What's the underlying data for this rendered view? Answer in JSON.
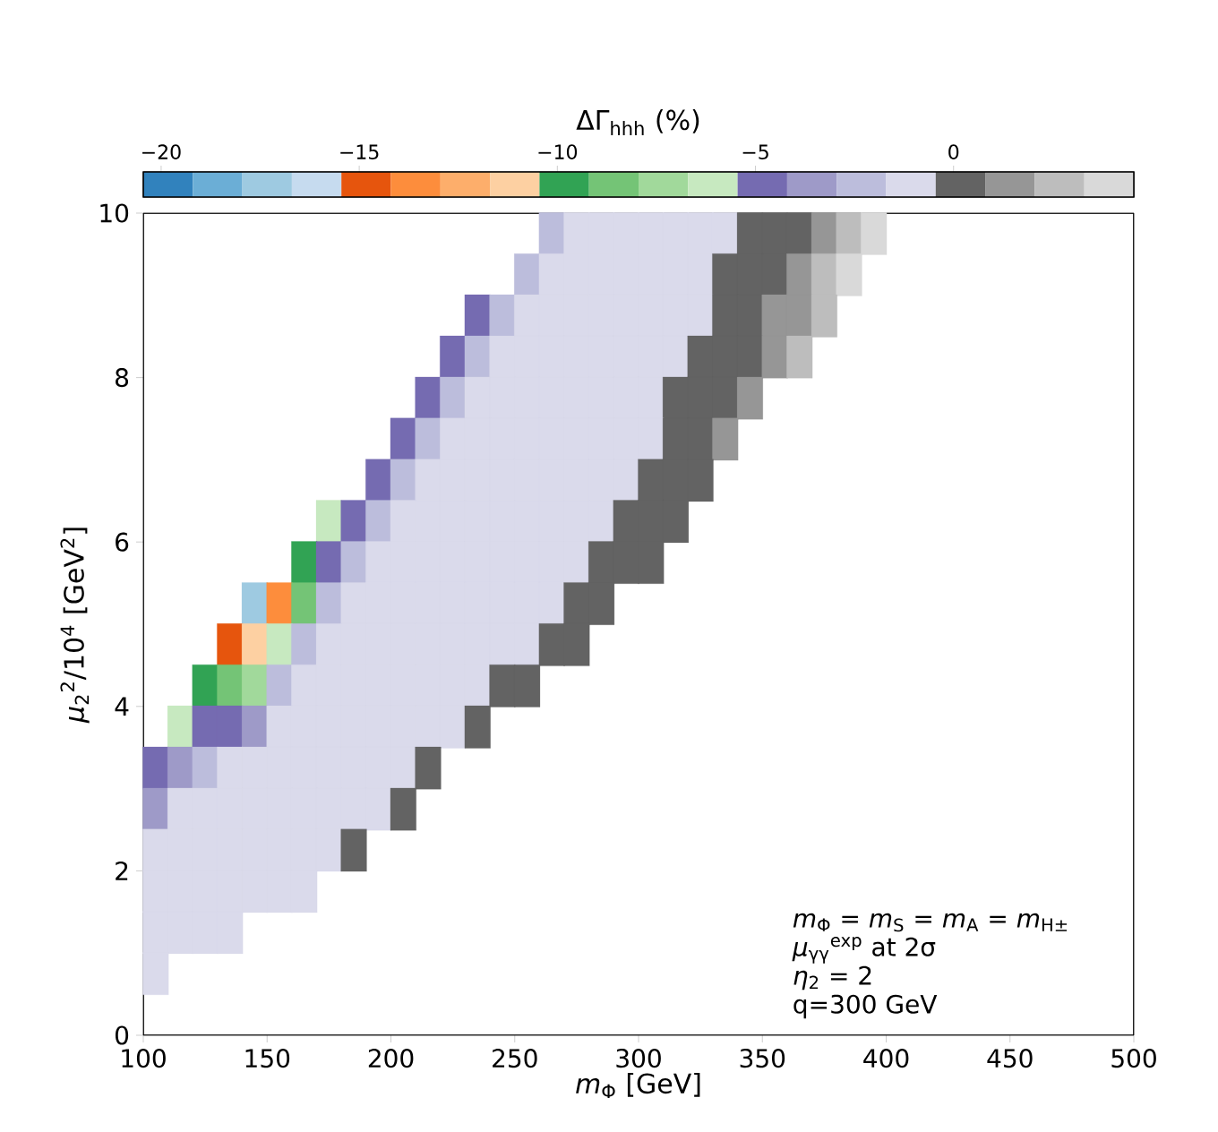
{
  "chart_data": {
    "type": "scatter",
    "marker": "square",
    "xlabel": "*m*$_{Φ}$ [GeV]",
    "ylabel": "*μ*$_{2}$$^{2}$/10$^{4}$ [GeV$^{2}$]",
    "clabel": "ΔΓ$_{hhh}$ (%)",
    "annotations": [
      "*m*$_{Φ}$ = *m*$_{S}$ = *m*$_{A}$ = *m*$_{H±}$",
      "*μ*$_{γγ}$$^{exp}$ at 2σ",
      "*η*$_{2}$ = 2",
      "q=300 GeV"
    ],
    "xlim": [
      100,
      500
    ],
    "ylim": [
      0,
      10
    ],
    "xticks": [
      100,
      150,
      200,
      250,
      300,
      350,
      400,
      450,
      500
    ],
    "yticks": [
      0,
      2,
      4,
      6,
      8,
      10
    ],
    "clim": [
      -20.45,
      4.55
    ],
    "cticks": [
      {
        "value": -20,
        "label": "−20"
      },
      {
        "value": -15,
        "label": "−15"
      },
      {
        "value": -10,
        "label": "−10"
      },
      {
        "value": -5,
        "label": "−5"
      },
      0
    ],
    "series": [
      {
        "x": [
          265,
          275,
          285,
          295,
          305,
          315,
          325,
          335,
          345,
          355,
          365,
          375,
          385,
          395
        ],
        "values": [
          9.75,
          9.75,
          9.75,
          9.75,
          9.75,
          9.75,
          9.75,
          9.75,
          9.75,
          9.75,
          9.75,
          9.75,
          9.75,
          9.75
        ],
        "colors": [
          "#bcbddc",
          "#dadaeb",
          "#dadaeb",
          "#dadaeb",
          "#dadaeb",
          "#dadaeb",
          "#dadaeb",
          "#dadaeb",
          "#636363",
          "#636363",
          "#636363",
          "#969696",
          "#bdbdbd",
          "#d9d9d9"
        ]
      },
      {
        "x": [
          255,
          265,
          275,
          285,
          295,
          305,
          315,
          325,
          335,
          345,
          355,
          365,
          375,
          385
        ],
        "values": [
          9.25,
          9.25,
          9.25,
          9.25,
          9.25,
          9.25,
          9.25,
          9.25,
          9.25,
          9.25,
          9.25,
          9.25,
          9.25,
          9.25
        ],
        "colors": [
          "#bcbddc",
          "#dadaeb",
          "#dadaeb",
          "#dadaeb",
          "#dadaeb",
          "#dadaeb",
          "#dadaeb",
          "#dadaeb",
          "#636363",
          "#636363",
          "#636363",
          "#969696",
          "#bdbdbd",
          "#d9d9d9"
        ]
      },
      {
        "x": [
          235,
          245,
          255,
          265,
          275,
          285,
          295,
          305,
          315,
          325,
          335,
          345,
          355,
          365,
          375
        ],
        "values": [
          8.75,
          8.75,
          8.75,
          8.75,
          8.75,
          8.75,
          8.75,
          8.75,
          8.75,
          8.75,
          8.75,
          8.75,
          8.75,
          8.75,
          8.75
        ],
        "colors": [
          "#756bb1",
          "#bcbddc",
          "#dadaeb",
          "#dadaeb",
          "#dadaeb",
          "#dadaeb",
          "#dadaeb",
          "#dadaeb",
          "#dadaeb",
          "#dadaeb",
          "#636363",
          "#636363",
          "#969696",
          "#969696",
          "#bdbdbd"
        ]
      },
      {
        "x": [
          225,
          235,
          245,
          255,
          265,
          275,
          285,
          295,
          305,
          315,
          325,
          335,
          345,
          355,
          365
        ],
        "values": [
          8.25,
          8.25,
          8.25,
          8.25,
          8.25,
          8.25,
          8.25,
          8.25,
          8.25,
          8.25,
          8.25,
          8.25,
          8.25,
          8.25,
          8.25
        ],
        "colors": [
          "#756bb1",
          "#bcbddc",
          "#dadaeb",
          "#dadaeb",
          "#dadaeb",
          "#dadaeb",
          "#dadaeb",
          "#dadaeb",
          "#dadaeb",
          "#dadaeb",
          "#636363",
          "#636363",
          "#636363",
          "#969696",
          "#bdbdbd"
        ]
      },
      {
        "x": [
          215,
          225,
          235,
          245,
          255,
          265,
          275,
          285,
          295,
          305,
          315,
          325,
          335,
          345
        ],
        "values": [
          7.75,
          7.75,
          7.75,
          7.75,
          7.75,
          7.75,
          7.75,
          7.75,
          7.75,
          7.75,
          7.75,
          7.75,
          7.75,
          7.75
        ],
        "colors": [
          "#756bb1",
          "#bcbddc",
          "#dadaeb",
          "#dadaeb",
          "#dadaeb",
          "#dadaeb",
          "#dadaeb",
          "#dadaeb",
          "#dadaeb",
          "#dadaeb",
          "#636363",
          "#636363",
          "#636363",
          "#969696"
        ]
      },
      {
        "x": [
          205,
          215,
          225,
          235,
          245,
          255,
          265,
          275,
          285,
          295,
          305,
          315,
          325,
          335
        ],
        "values": [
          7.25,
          7.25,
          7.25,
          7.25,
          7.25,
          7.25,
          7.25,
          7.25,
          7.25,
          7.25,
          7.25,
          7.25,
          7.25,
          7.25
        ],
        "colors": [
          "#756bb1",
          "#bcbddc",
          "#dadaeb",
          "#dadaeb",
          "#dadaeb",
          "#dadaeb",
          "#dadaeb",
          "#dadaeb",
          "#dadaeb",
          "#dadaeb",
          "#dadaeb",
          "#636363",
          "#636363",
          "#969696"
        ]
      },
      {
        "x": [
          195,
          205,
          215,
          225,
          235,
          245,
          255,
          265,
          275,
          285,
          295,
          305,
          315,
          325
        ],
        "values": [
          6.75,
          6.75,
          6.75,
          6.75,
          6.75,
          6.75,
          6.75,
          6.75,
          6.75,
          6.75,
          6.75,
          6.75,
          6.75,
          6.75
        ],
        "colors": [
          "#756bb1",
          "#bcbddc",
          "#dadaeb",
          "#dadaeb",
          "#dadaeb",
          "#dadaeb",
          "#dadaeb",
          "#dadaeb",
          "#dadaeb",
          "#dadaeb",
          "#dadaeb",
          "#636363",
          "#636363",
          "#636363"
        ]
      },
      {
        "x": [
          175,
          185,
          195,
          205,
          215,
          225,
          235,
          245,
          255,
          265,
          275,
          285,
          295,
          305,
          315
        ],
        "values": [
          6.25,
          6.25,
          6.25,
          6.25,
          6.25,
          6.25,
          6.25,
          6.25,
          6.25,
          6.25,
          6.25,
          6.25,
          6.25,
          6.25,
          6.25
        ],
        "colors": [
          "#c7e9c0",
          "#756bb1",
          "#bcbddc",
          "#dadaeb",
          "#dadaeb",
          "#dadaeb",
          "#dadaeb",
          "#dadaeb",
          "#dadaeb",
          "#dadaeb",
          "#dadaeb",
          "#dadaeb",
          "#636363",
          "#636363",
          "#636363"
        ]
      },
      {
        "x": [
          165,
          175,
          185,
          195,
          205,
          215,
          225,
          235,
          245,
          255,
          265,
          275,
          285,
          295,
          305
        ],
        "values": [
          5.75,
          5.75,
          5.75,
          5.75,
          5.75,
          5.75,
          5.75,
          5.75,
          5.75,
          5.75,
          5.75,
          5.75,
          5.75,
          5.75,
          5.75
        ],
        "colors": [
          "#31a354",
          "#756bb1",
          "#bcbddc",
          "#dadaeb",
          "#dadaeb",
          "#dadaeb",
          "#dadaeb",
          "#dadaeb",
          "#dadaeb",
          "#dadaeb",
          "#dadaeb",
          "#dadaeb",
          "#636363",
          "#636363",
          "#636363"
        ]
      },
      {
        "x": [
          145,
          155,
          165,
          175,
          185,
          195,
          205,
          215,
          225,
          235,
          245,
          255,
          265,
          275,
          285
        ],
        "values": [
          5.25,
          5.25,
          5.25,
          5.25,
          5.25,
          5.25,
          5.25,
          5.25,
          5.25,
          5.25,
          5.25,
          5.25,
          5.25,
          5.25,
          5.25
        ],
        "colors": [
          "#9ecae1",
          "#fd8d3c",
          "#74c476",
          "#bcbddc",
          "#dadaeb",
          "#dadaeb",
          "#dadaeb",
          "#dadaeb",
          "#dadaeb",
          "#dadaeb",
          "#dadaeb",
          "#dadaeb",
          "#dadaeb",
          "#636363",
          "#636363"
        ]
      },
      {
        "x": [
          135,
          145,
          155,
          165,
          175,
          185,
          195,
          205,
          215,
          225,
          235,
          245,
          255,
          265,
          275
        ],
        "values": [
          4.75,
          4.75,
          4.75,
          4.75,
          4.75,
          4.75,
          4.75,
          4.75,
          4.75,
          4.75,
          4.75,
          4.75,
          4.75,
          4.75,
          4.75
        ],
        "colors": [
          "#e6550d",
          "#fdd0a2",
          "#c7e9c0",
          "#bcbddc",
          "#dadaeb",
          "#dadaeb",
          "#dadaeb",
          "#dadaeb",
          "#dadaeb",
          "#dadaeb",
          "#dadaeb",
          "#dadaeb",
          "#dadaeb",
          "#636363",
          "#636363"
        ]
      },
      {
        "x": [
          125,
          135,
          145,
          155,
          165,
          175,
          185,
          195,
          205,
          215,
          225,
          235,
          245,
          255
        ],
        "values": [
          4.25,
          4.25,
          4.25,
          4.25,
          4.25,
          4.25,
          4.25,
          4.25,
          4.25,
          4.25,
          4.25,
          4.25,
          4.25,
          4.25
        ],
        "colors": [
          "#31a354",
          "#74c476",
          "#a1d99b",
          "#bcbddc",
          "#dadaeb",
          "#dadaeb",
          "#dadaeb",
          "#dadaeb",
          "#dadaeb",
          "#dadaeb",
          "#dadaeb",
          "#dadaeb",
          "#636363",
          "#636363"
        ]
      },
      {
        "x": [
          115,
          125,
          135,
          145,
          155,
          165,
          175,
          185,
          195,
          205,
          215,
          225,
          235
        ],
        "values": [
          3.75,
          3.75,
          3.75,
          3.75,
          3.75,
          3.75,
          3.75,
          3.75,
          3.75,
          3.75,
          3.75,
          3.75,
          3.75
        ],
        "colors": [
          "#c7e9c0",
          "#756bb1",
          "#756bb1",
          "#9e9ac8",
          "#dadaeb",
          "#dadaeb",
          "#dadaeb",
          "#dadaeb",
          "#dadaeb",
          "#dadaeb",
          "#dadaeb",
          "#dadaeb",
          "#636363"
        ]
      },
      {
        "x": [
          105,
          115,
          125,
          135,
          145,
          155,
          165,
          175,
          185,
          195,
          205,
          215
        ],
        "values": [
          3.25,
          3.25,
          3.25,
          3.25,
          3.25,
          3.25,
          3.25,
          3.25,
          3.25,
          3.25,
          3.25,
          3.25
        ],
        "colors": [
          "#756bb1",
          "#9e9ac8",
          "#bcbddc",
          "#dadaeb",
          "#dadaeb",
          "#dadaeb",
          "#dadaeb",
          "#dadaeb",
          "#dadaeb",
          "#dadaeb",
          "#dadaeb",
          "#636363"
        ]
      },
      {
        "x": [
          105,
          115,
          125,
          135,
          145,
          155,
          165,
          175,
          185,
          195,
          205
        ],
        "values": [
          2.75,
          2.75,
          2.75,
          2.75,
          2.75,
          2.75,
          2.75,
          2.75,
          2.75,
          2.75,
          2.75
        ],
        "colors": [
          "#9e9ac8",
          "#dadaeb",
          "#dadaeb",
          "#dadaeb",
          "#dadaeb",
          "#dadaeb",
          "#dadaeb",
          "#dadaeb",
          "#dadaeb",
          "#dadaeb",
          "#636363"
        ]
      },
      {
        "x": [
          105,
          115,
          125,
          135,
          145,
          155,
          165,
          175,
          185
        ],
        "values": [
          2.25,
          2.25,
          2.25,
          2.25,
          2.25,
          2.25,
          2.25,
          2.25,
          2.25
        ],
        "colors": [
          "#dadaeb",
          "#dadaeb",
          "#dadaeb",
          "#dadaeb",
          "#dadaeb",
          "#dadaeb",
          "#dadaeb",
          "#dadaeb",
          "#636363"
        ]
      },
      {
        "x": [
          105,
          115,
          125,
          135,
          145,
          155,
          165
        ],
        "values": [
          1.75,
          1.75,
          1.75,
          1.75,
          1.75,
          1.75,
          1.75
        ],
        "color": "#dadaeb"
      },
      {
        "x": [
          105,
          115,
          125,
          135
        ],
        "values": [
          1.25,
          1.25,
          1.25,
          1.25
        ],
        "color": "#dadaeb"
      },
      {
        "x": [
          105
        ],
        "values": [
          0.75
        ],
        "color": "#dadaeb"
      }
    ]
  }
}
